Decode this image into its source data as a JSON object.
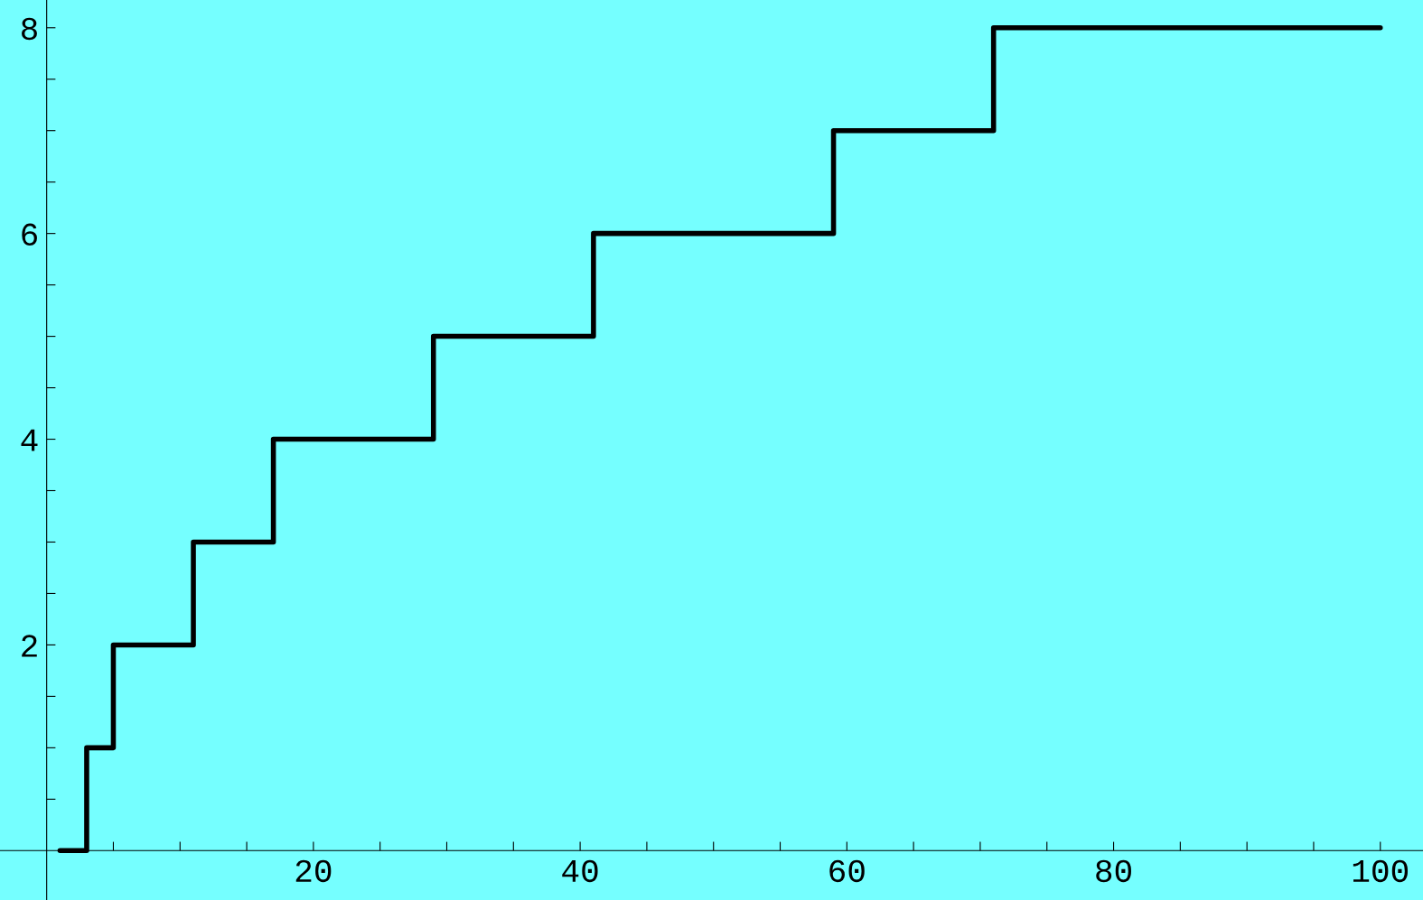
{
  "chart_data": {
    "type": "step",
    "x": [
      1,
      3,
      5,
      11,
      17,
      29,
      41,
      59,
      71,
      100
    ],
    "series": [
      {
        "color": "#000000",
        "values": [
          0,
          1,
          2,
          3,
          4,
          5,
          6,
          7,
          8,
          8
        ]
      }
    ],
    "xlim": [
      -3.5,
      103.2
    ],
    "ylim": [
      -0.48,
      8.27
    ],
    "xticks": [
      {
        "value": 5,
        "label": null
      },
      {
        "value": 10,
        "label": null
      },
      {
        "value": 15,
        "label": null
      },
      20,
      {
        "value": 25,
        "label": null
      },
      {
        "value": 30,
        "label": null
      },
      {
        "value": 35,
        "label": null
      },
      40,
      {
        "value": 45,
        "label": null
      },
      {
        "value": 50,
        "label": null
      },
      {
        "value": 55,
        "label": null
      },
      60,
      {
        "value": 65,
        "label": null
      },
      {
        "value": 70,
        "label": null
      },
      {
        "value": 75,
        "label": null
      },
      80,
      {
        "value": 85,
        "label": null
      },
      {
        "value": 90,
        "label": null
      },
      {
        "value": 95,
        "label": null
      },
      100
    ],
    "yticks": [
      {
        "value": 0.5,
        "label": null
      },
      {
        "value": 1,
        "label": null
      },
      {
        "value": 1.5,
        "label": null
      },
      2,
      {
        "value": 2.5,
        "label": null
      },
      {
        "value": 3,
        "label": null
      },
      {
        "value": 3.5,
        "label": null
      },
      4,
      {
        "value": 4.5,
        "label": null
      },
      {
        "value": 5,
        "label": null
      },
      {
        "value": 5.5,
        "label": null
      },
      6,
      {
        "value": 6.5,
        "label": null
      },
      {
        "value": 7,
        "label": null
      },
      {
        "value": 7.5,
        "label": null
      },
      8
    ],
    "grid": false,
    "legend": false,
    "line_style": "solid",
    "marker": "none"
  }
}
